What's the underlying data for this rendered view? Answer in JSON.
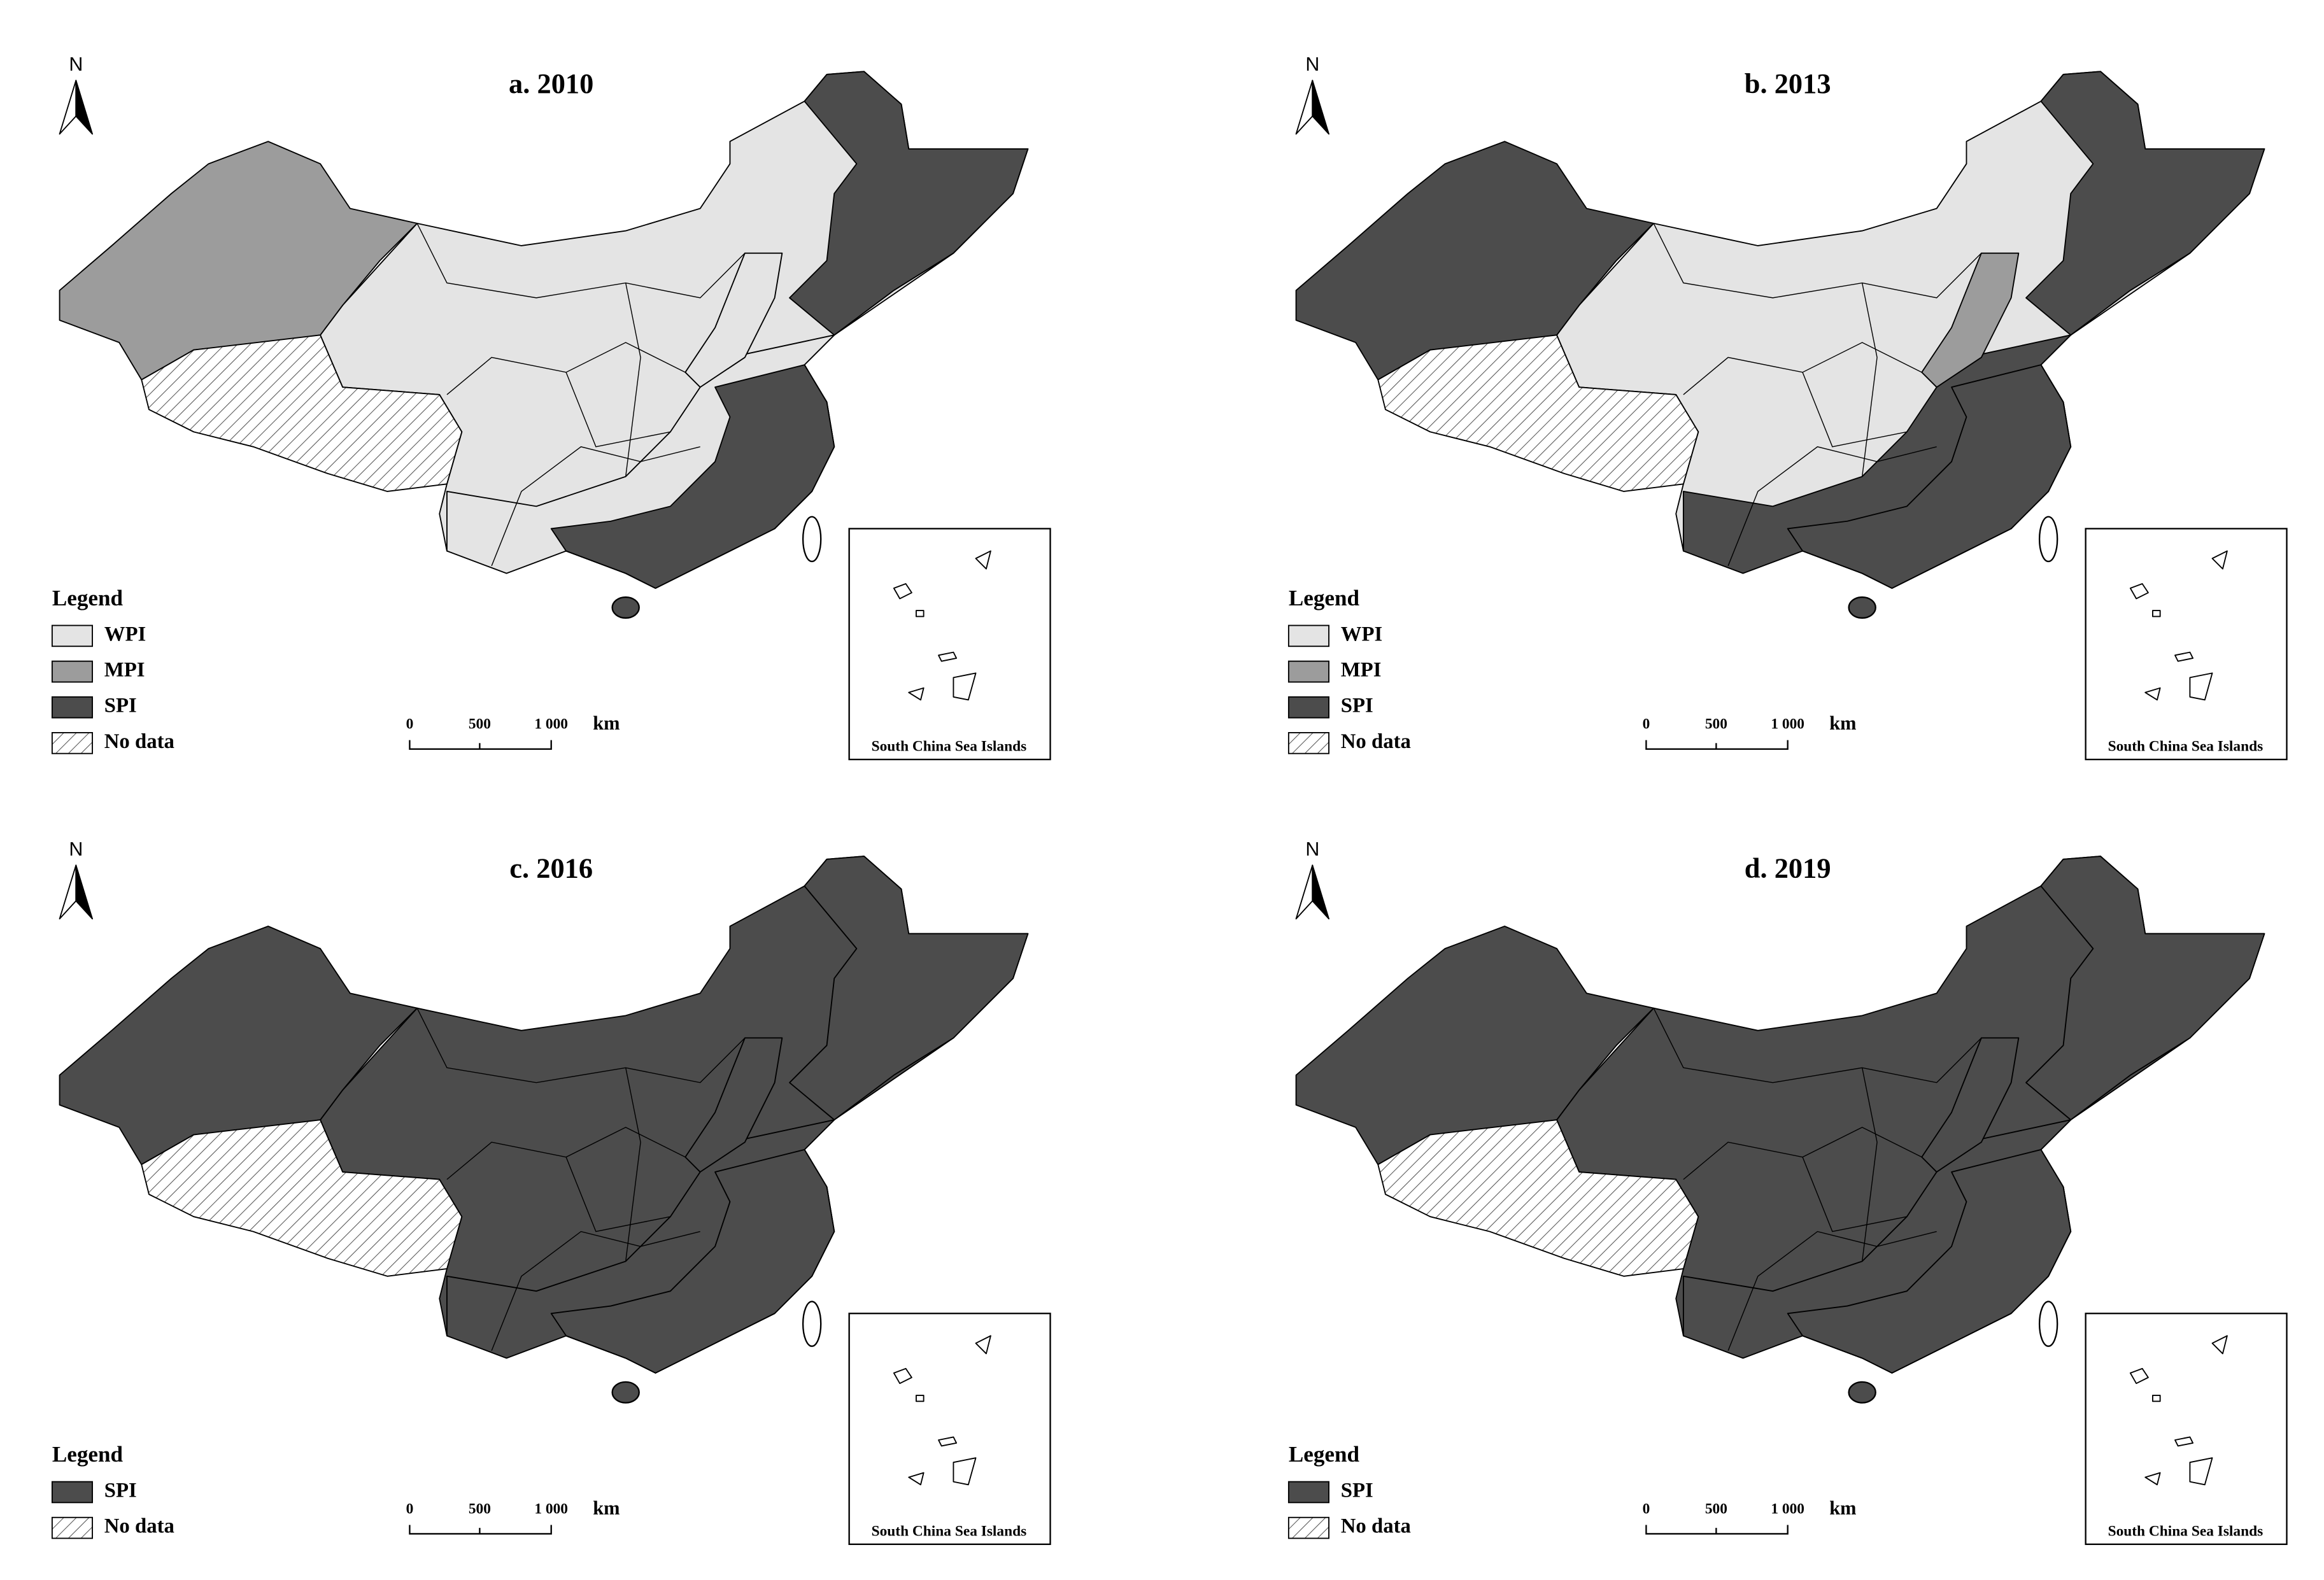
{
  "panels": [
    {
      "title": "a. 2010",
      "north": "N",
      "legend_title": "Legend",
      "legend": [
        {
          "label": "WPI",
          "color": "#e4e4e4"
        },
        {
          "label": "MPI",
          "color": "#9c9c9c"
        },
        {
          "label": "SPI",
          "color": "#4c4c4c"
        },
        {
          "label": "No  data"
        }
      ],
      "scale_labels": [
        "0",
        "500",
        "1 000",
        "km"
      ],
      "inset_label": "South China Sea Islands"
    },
    {
      "title": "b. 2013",
      "north": "N",
      "legend_title": "Legend",
      "legend": [
        {
          "label": "WPI",
          "color": "#e4e4e4"
        },
        {
          "label": "MPI",
          "color": "#9c9c9c"
        },
        {
          "label": "SPI",
          "color": "#4c4c4c"
        },
        {
          "label": "No data"
        }
      ],
      "scale_labels": [
        "0",
        "500",
        "1 000",
        "km"
      ],
      "inset_label": "South China Sea Islands"
    },
    {
      "title": "c. 2016",
      "north": "N",
      "legend_title": "Legend",
      "legend": [
        {
          "label": "SPI",
          "color": "#4c4c4c"
        },
        {
          "label": "No data"
        }
      ],
      "scale_labels": [
        "0",
        "500",
        "1 000",
        "km"
      ],
      "inset_label": "South China Sea Islands"
    },
    {
      "title": "d. 2019",
      "north": "N",
      "legend_title": "Legend",
      "legend": [
        {
          "label": "SPI",
          "color": "#4c4c4c"
        },
        {
          "label": "No data"
        }
      ],
      "scale_labels": [
        "0",
        "500",
        "1 000",
        "km"
      ],
      "inset_label": "South China Sea Islands"
    }
  ]
}
